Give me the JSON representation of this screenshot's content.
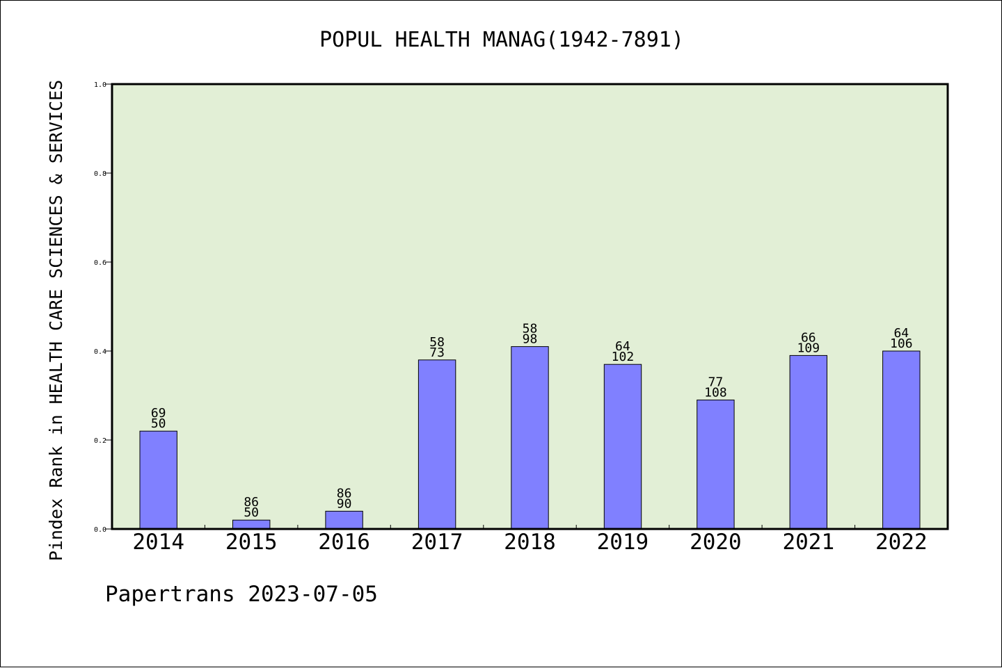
{
  "chart_data": {
    "type": "bar",
    "title": "POPUL HEALTH MANAG(1942-7891)",
    "ylabel": "Pindex Rank in HEALTH CARE SCIENCES & SERVICES",
    "xlabel": "",
    "ylim": [
      0,
      1.0
    ],
    "yticks": [
      "0.0",
      "0.2",
      "0.4",
      "0.6",
      "0.8",
      "1.0"
    ],
    "grid": false,
    "categories": [
      "2014",
      "2015",
      "2016",
      "2017",
      "2018",
      "2019",
      "2020",
      "2021",
      "2022"
    ],
    "values": [
      0.22,
      0.02,
      0.04,
      0.38,
      0.41,
      0.37,
      0.29,
      0.39,
      0.4
    ],
    "labels_top": [
      "69",
      "86",
      "86",
      "58",
      "58",
      "64",
      "77",
      "66",
      "64"
    ],
    "labels_bottom": [
      "50",
      "50",
      "90",
      "73",
      "98",
      "102",
      "108",
      "109",
      "106"
    ],
    "colors": {
      "bar": "#8080ff",
      "plot_background": "#e2efd6",
      "axis": "#000000"
    }
  },
  "footer": "Papertrans 2023-07-05"
}
